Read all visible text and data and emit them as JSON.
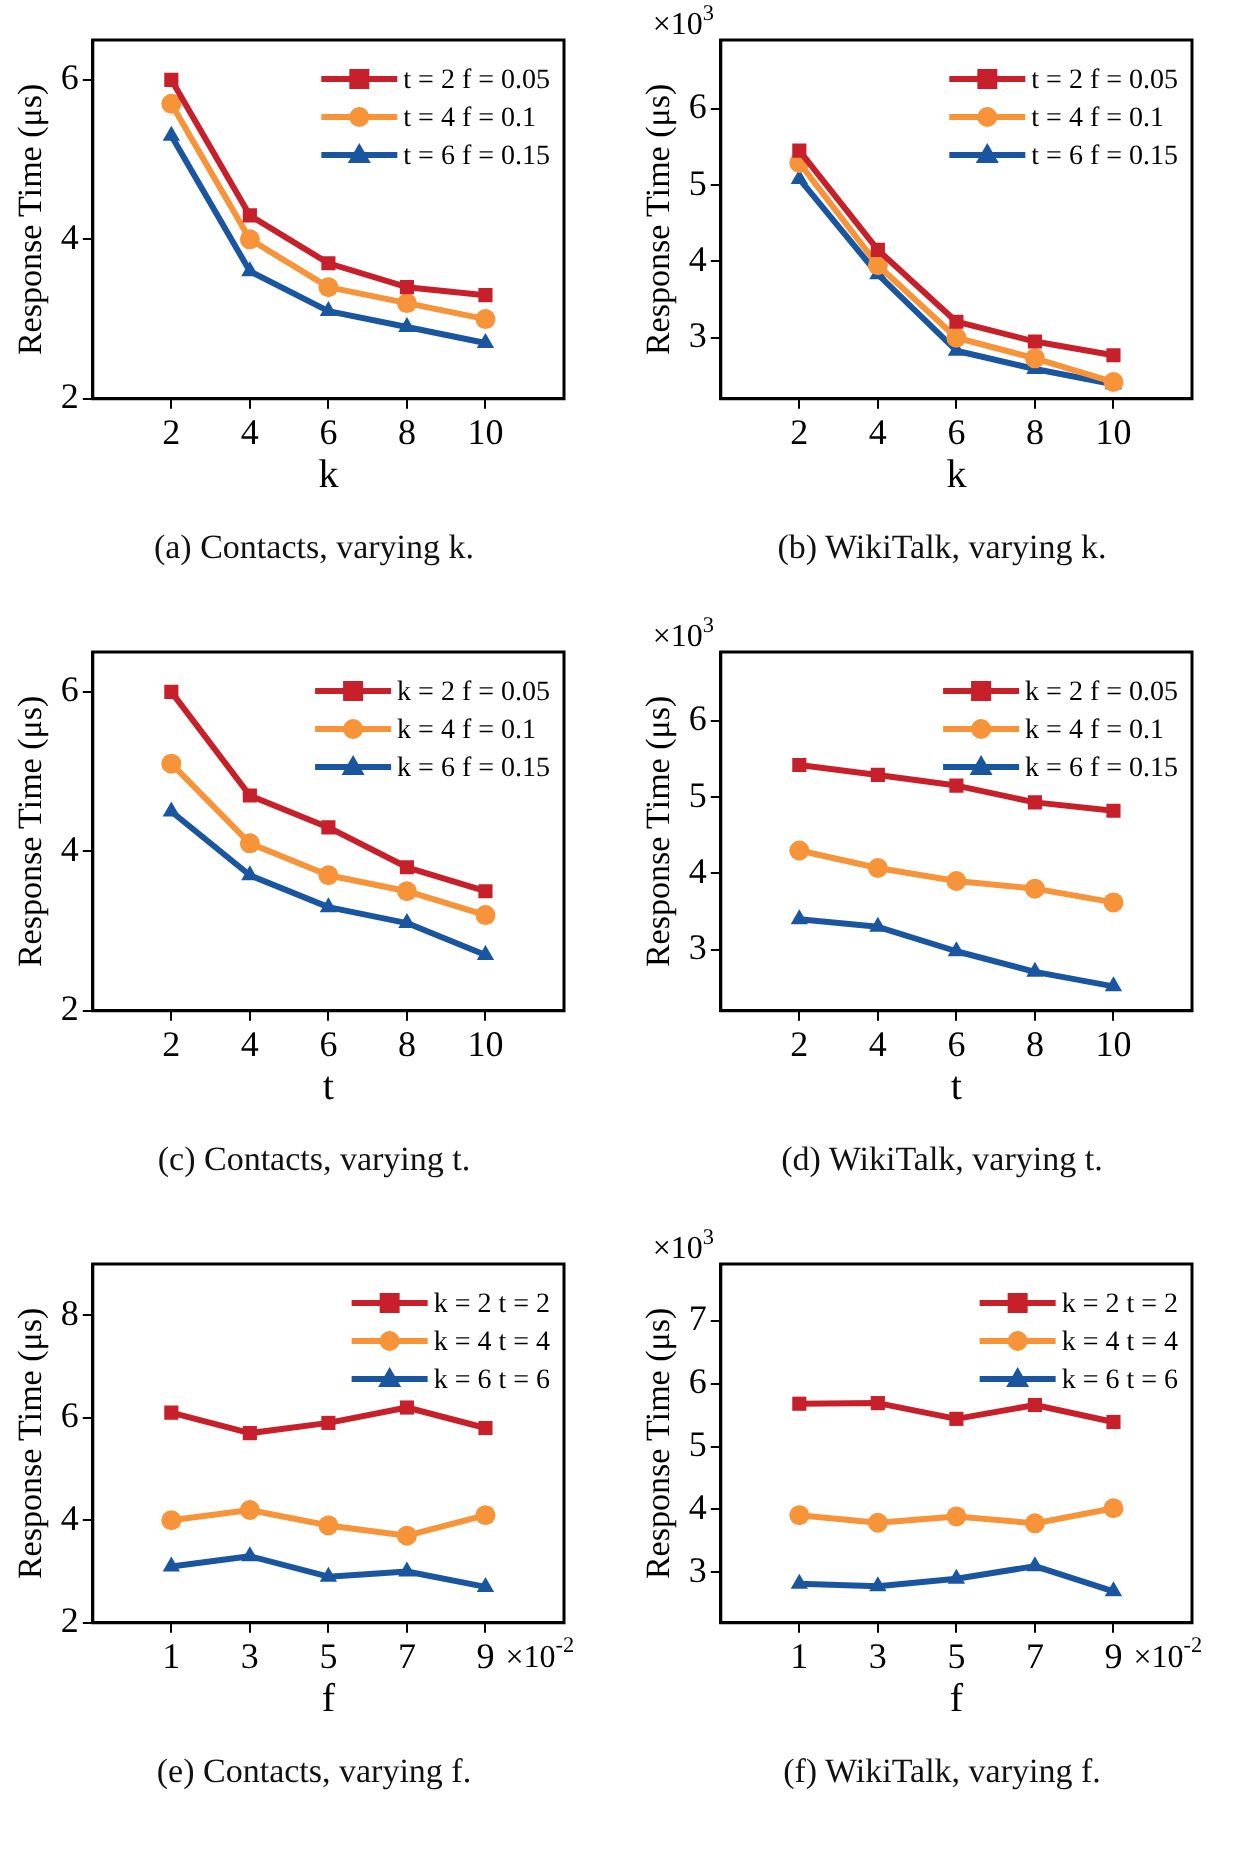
{
  "chart_data": [
    {
      "type": "line",
      "title": "(a) Contacts, varying k.",
      "xlabel": "k",
      "ylabel": "Response Time (μs)",
      "x": [
        2,
        4,
        6,
        8,
        10
      ],
      "xlim": [
        0,
        12
      ],
      "xticks": [
        2,
        4,
        6,
        8,
        10
      ],
      "ylim": [
        2,
        6.5
      ],
      "yticks": [
        2,
        4,
        6
      ],
      "grid": false,
      "legend": "top right",
      "line_style": "solid",
      "series": [
        {
          "name": "t = 2 f = 0.05",
          "color": "#c8202a",
          "marker": "square",
          "values": [
            6.0,
            4.3,
            3.7,
            3.4,
            3.3
          ]
        },
        {
          "name": "t = 4 f = 0.1",
          "color": "#f7943a",
          "marker": "circle",
          "values": [
            5.7,
            4.0,
            3.4,
            3.2,
            3.0
          ]
        },
        {
          "name": "t = 6 f = 0.15",
          "color": "#1a56a0",
          "marker": "triangle",
          "values": [
            5.3,
            3.6,
            3.1,
            2.9,
            2.7
          ]
        }
      ]
    },
    {
      "type": "line",
      "title": "(b) WikiTalk, varying k.",
      "xlabel": "k",
      "ylabel": "Response Time (μs)",
      "annotations": [
        "×10$^{3}$"
      ],
      "x": [
        2,
        4,
        6,
        8,
        10
      ],
      "xlim": [
        0,
        12
      ],
      "xticks": [
        2,
        4,
        6,
        8,
        10
      ],
      "ylim": [
        2.2,
        6.9
      ],
      "yticks": [
        3,
        4,
        5,
        6
      ],
      "grid": false,
      "legend": "top right",
      "line_style": "solid",
      "series": [
        {
          "name": "t = 2 f = 0.05",
          "color": "#c8202a",
          "marker": "square",
          "values": [
            5.45,
            4.15,
            3.21,
            2.95,
            2.77
          ]
        },
        {
          "name": "t = 4 f = 0.1",
          "color": "#f7943a",
          "marker": "circle",
          "values": [
            5.29,
            3.95,
            3.0,
            2.73,
            2.42
          ]
        },
        {
          "name": "t = 6 f = 0.15",
          "color": "#1a56a0",
          "marker": "triangle",
          "values": [
            5.08,
            3.83,
            2.83,
            2.59,
            2.39
          ]
        }
      ]
    },
    {
      "type": "line",
      "title": "(c) Contacts, varying t.",
      "xlabel": "t",
      "ylabel": "Response Time (μs)",
      "x": [
        2,
        4,
        6,
        8,
        10
      ],
      "xlim": [
        0,
        12
      ],
      "xticks": [
        2,
        4,
        6,
        8,
        10
      ],
      "ylim": [
        2,
        6.5
      ],
      "yticks": [
        2,
        4,
        6
      ],
      "grid": false,
      "legend": "top right",
      "line_style": "solid",
      "series": [
        {
          "name": "k = 2 f = 0.05",
          "color": "#c8202a",
          "marker": "square",
          "values": [
            6.0,
            4.7,
            4.3,
            3.8,
            3.5
          ]
        },
        {
          "name": "k = 4 f = 0.1",
          "color": "#f7943a",
          "marker": "circle",
          "values": [
            5.1,
            4.1,
            3.7,
            3.5,
            3.2
          ]
        },
        {
          "name": "k = 6 f = 0.15",
          "color": "#1a56a0",
          "marker": "triangle",
          "values": [
            4.5,
            3.7,
            3.3,
            3.1,
            2.7
          ]
        }
      ]
    },
    {
      "type": "line",
      "title": "(d) WikiTalk, varying t.",
      "xlabel": "t",
      "ylabel": "Response Time (μs)",
      "annotations": [
        "×10$^{3}$"
      ],
      "x": [
        2,
        4,
        6,
        8,
        10
      ],
      "xlim": [
        0,
        12
      ],
      "xticks": [
        2,
        4,
        6,
        8,
        10
      ],
      "ylim": [
        2.2,
        6.9
      ],
      "yticks": [
        3,
        4,
        5,
        6
      ],
      "grid": false,
      "legend": "top right",
      "line_style": "solid",
      "series": [
        {
          "name": "k = 2 f = 0.05",
          "color": "#c8202a",
          "marker": "square",
          "values": [
            5.42,
            5.29,
            5.15,
            4.93,
            4.82
          ]
        },
        {
          "name": "k = 4 f = 0.1",
          "color": "#f7943a",
          "marker": "circle",
          "values": [
            4.3,
            4.07,
            3.9,
            3.8,
            3.62
          ]
        },
        {
          "name": "k = 6 f = 0.15",
          "color": "#1a56a0",
          "marker": "triangle",
          "values": [
            3.4,
            3.3,
            2.98,
            2.71,
            2.52
          ]
        }
      ]
    },
    {
      "type": "line",
      "title": "(e) Contacts, varying f.",
      "xlabel": "f",
      "ylabel": "Response Time (μs)",
      "annotations": [
        "×10$^{-2}$"
      ],
      "x": [
        1,
        3,
        5,
        7,
        9
      ],
      "xlim": [
        -1,
        11
      ],
      "xticks": [
        1,
        3,
        5,
        7,
        9
      ],
      "ylim": [
        2,
        9
      ],
      "yticks": [
        2,
        4,
        6,
        8
      ],
      "grid": false,
      "legend": "top right",
      "line_style": "solid",
      "series": [
        {
          "name": "k = 2 t = 2",
          "color": "#c8202a",
          "marker": "square",
          "values": [
            6.1,
            5.7,
            5.9,
            6.2,
            5.8
          ]
        },
        {
          "name": "k = 4 t = 4",
          "color": "#f7943a",
          "marker": "circle",
          "values": [
            4.0,
            4.2,
            3.9,
            3.7,
            4.1
          ]
        },
        {
          "name": "k = 6 t = 6",
          "color": "#1a56a0",
          "marker": "triangle",
          "values": [
            3.1,
            3.3,
            2.9,
            3.0,
            2.7
          ]
        }
      ]
    },
    {
      "type": "line",
      "title": "(f) WikiTalk, varying f.",
      "xlabel": "f",
      "ylabel": "Response Time (μs)",
      "annotations": [
        "×10$^{3}$",
        "×10$^{-2}$"
      ],
      "x": [
        1,
        3,
        5,
        7,
        9
      ],
      "xlim": [
        -1,
        11
      ],
      "xticks": [
        1,
        3,
        5,
        7,
        9
      ],
      "ylim": [
        2.2,
        7.9
      ],
      "yticks": [
        3,
        4,
        5,
        6,
        7
      ],
      "grid": false,
      "legend": "top right",
      "line_style": "solid",
      "series": [
        {
          "name": "k = 2 t = 2",
          "color": "#c8202a",
          "marker": "square",
          "values": [
            5.68,
            5.69,
            5.44,
            5.66,
            5.39
          ]
        },
        {
          "name": "k = 4 t = 4",
          "color": "#f7943a",
          "marker": "circle",
          "values": [
            3.91,
            3.79,
            3.89,
            3.78,
            4.02
          ]
        },
        {
          "name": "k = 6 t = 6",
          "color": "#1a56a0",
          "marker": "triangle",
          "values": [
            2.82,
            2.78,
            2.9,
            3.1,
            2.7
          ]
        }
      ]
    }
  ]
}
